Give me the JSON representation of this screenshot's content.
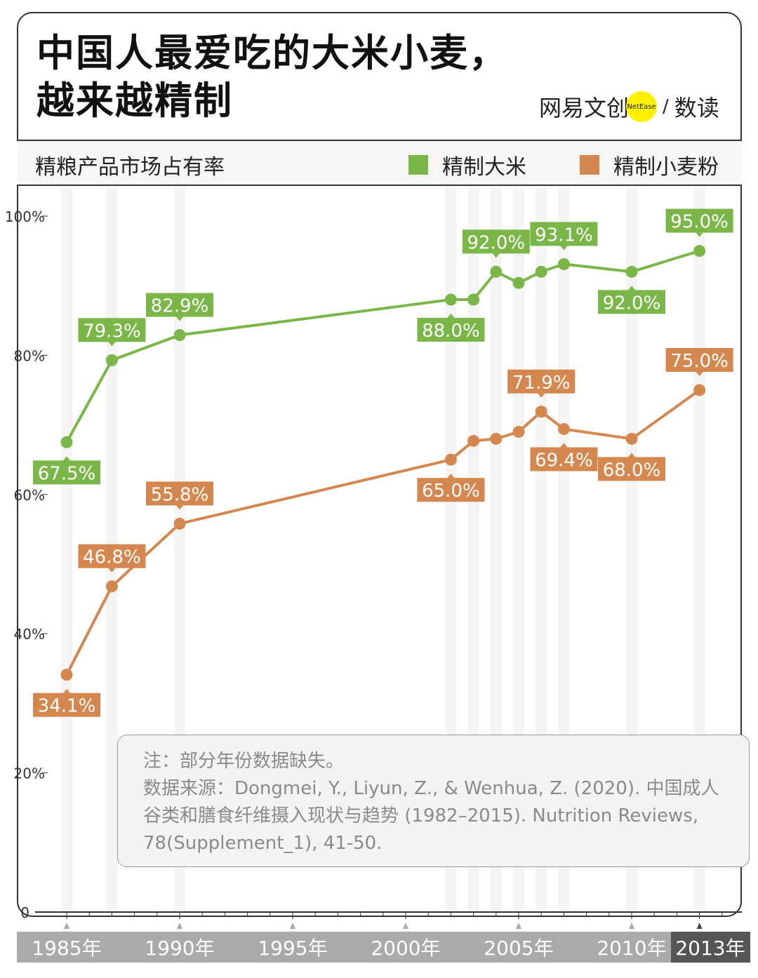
{
  "header": {
    "title_line1": "中国人最爱吃的大米小麦，",
    "title_line2": "越来越精制",
    "logo_text": "网易文创",
    "logo_badge": "NetEase",
    "logo_sep": "/",
    "logo_section": "数读"
  },
  "chart_data": {
    "type": "line",
    "subtitle": "精粮产品市场占有率",
    "x": [
      1985,
      1987,
      1990,
      2002,
      2003,
      2004,
      2005,
      2006,
      2007,
      2010,
      2013
    ],
    "ylim": [
      0,
      100
    ],
    "yticks": [
      "0",
      "20%",
      "40%",
      "60%",
      "80%",
      "100%"
    ],
    "xticks": [
      "1985年",
      "1990年",
      "1995年",
      "2000年",
      "2005年",
      "2010年",
      "2013年"
    ],
    "series": [
      {
        "name": "精制大米",
        "color": "#7ab648",
        "values": [
          67.5,
          79.3,
          82.9,
          88.0,
          88.0,
          92.0,
          90.4,
          92.0,
          93.1,
          92.0,
          95.0
        ],
        "labels": [
          "67.5%",
          "79.3%",
          "82.9%",
          "88.0%",
          "",
          "92.0%",
          "",
          "",
          "93.1%",
          "92.0%",
          "95.0%"
        ]
      },
      {
        "name": "精制小麦粉",
        "color": "#d4884f",
        "values": [
          34.1,
          46.8,
          55.8,
          65.0,
          67.7,
          68.0,
          69.0,
          71.9,
          69.4,
          68.0,
          75.0
        ],
        "labels": [
          "34.1%",
          "46.8%",
          "55.8%",
          "65.0%",
          "",
          "",
          "",
          "71.9%",
          "69.4%",
          "68.0%",
          "75.0%"
        ]
      }
    ]
  },
  "note": {
    "line1": "注：部分年份数据缺失。",
    "line2": "数据来源：Dongmei, Y., Liyun, Z., & Wenhua, Z. (2020). 中国成人谷类和膳食纤维摄入现状与趋势 (1982–2015). Nutrition Reviews, 78(Supplement_1), 41-50."
  }
}
